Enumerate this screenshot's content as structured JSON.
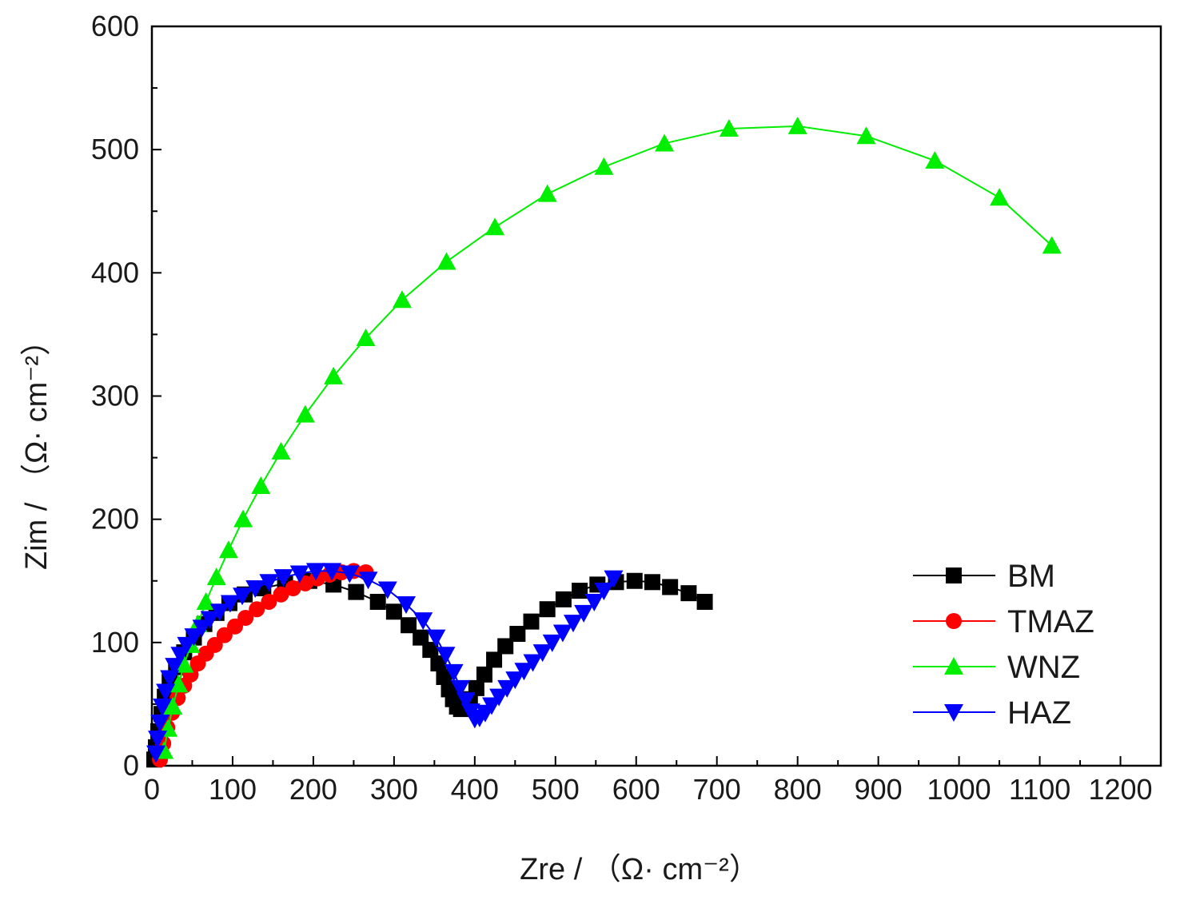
{
  "chart_data": {
    "type": "scatter",
    "title": "",
    "xlabel": "Zre / （Ω· cm⁻²）",
    "ylabel": "Zim / （Ω· cm⁻²）",
    "xlim": [
      0,
      1250
    ],
    "ylim": [
      0,
      600
    ],
    "xticks": [
      0,
      100,
      200,
      300,
      400,
      500,
      600,
      700,
      800,
      900,
      1000,
      1100,
      1200
    ],
    "yticks": [
      0,
      100,
      200,
      300,
      400,
      500,
      600
    ],
    "xtick_labels": [
      "0",
      "100",
      "200",
      "300",
      "400",
      "500",
      "600",
      "700",
      "800",
      "900",
      "1000",
      "1100",
      "1200"
    ],
    "ytick_labels": [
      "0",
      "100",
      "200",
      "300",
      "400",
      "500",
      "600"
    ],
    "grid": false,
    "legend_position": "right-lower",
    "series": [
      {
        "name": "BM",
        "color": "#000000",
        "marker": "square",
        "x": [
          3,
          5,
          8,
          12,
          16,
          22,
          30,
          40,
          52,
          65,
          80,
          96,
          115,
          138,
          165,
          195,
          225,
          253,
          280,
          300,
          318,
          333,
          345,
          355,
          362,
          368,
          373,
          378,
          383,
          388,
          394,
          402,
          412,
          424,
          438,
          453,
          470,
          490,
          510,
          530,
          552,
          575,
          598,
          620,
          642,
          665,
          685
        ],
        "y": [
          5,
          15,
          28,
          42,
          56,
          68,
          80,
          92,
          104,
          115,
          124,
          132,
          139,
          144,
          148,
          150,
          147,
          141,
          133,
          125,
          114,
          104,
          94,
          83,
          72,
          62,
          54,
          48,
          46,
          48,
          54,
          63,
          74,
          86,
          97,
          107,
          117,
          127,
          135,
          142,
          147,
          149,
          150,
          149,
          145,
          140,
          133
        ]
      },
      {
        "name": "TMAZ",
        "color": "#ff0000",
        "marker": "circle",
        "x": [
          10,
          14,
          19,
          25,
          32,
          40,
          48,
          57,
          67,
          78,
          90,
          103,
          116,
          130,
          145,
          160,
          175,
          190,
          205,
          220,
          235,
          250,
          265
        ],
        "y": [
          5,
          18,
          31,
          43,
          55,
          65,
          74,
          83,
          91,
          98,
          106,
          113,
          120,
          127,
          133,
          139,
          144,
          148,
          152,
          155,
          157,
          158,
          157
        ]
      },
      {
        "name": "WNZ",
        "color": "#00ee00",
        "marker": "triangle-up",
        "x": [
          15,
          20,
          26,
          33,
          40,
          48,
          57,
          67,
          80,
          95,
          113,
          135,
          160,
          190,
          225,
          265,
          310,
          365,
          425,
          490,
          560,
          635,
          715,
          800,
          885,
          970,
          1050,
          1115
        ],
        "y": [
          12,
          30,
          48,
          66,
          82,
          98,
          115,
          133,
          153,
          175,
          200,
          227,
          255,
          285,
          316,
          347,
          378,
          409,
          437,
          464,
          486,
          505,
          517,
          519,
          511,
          491,
          461,
          422
        ]
      },
      {
        "name": "HAZ",
        "color": "#0000ff",
        "marker": "triangle-down",
        "x": [
          5,
          7,
          10,
          13,
          17,
          22,
          28,
          35,
          43,
          52,
          62,
          72,
          84,
          97,
          112,
          128,
          145,
          163,
          183,
          203,
          223,
          245,
          268,
          292,
          315,
          336,
          352,
          364,
          374,
          382,
          389,
          395,
          400,
          406,
          413,
          421,
          430,
          440,
          450,
          461,
          472,
          484,
          496,
          509,
          522,
          535,
          548,
          560,
          572
        ],
        "y": [
          10,
          22,
          35,
          48,
          60,
          71,
          81,
          90,
          98,
          105,
          112,
          119,
          125,
          132,
          138,
          144,
          149,
          153,
          156,
          158,
          158,
          156,
          151,
          143,
          131,
          118,
          104,
          90,
          76,
          63,
          53,
          44,
          38,
          39,
          43,
          49,
          56,
          63,
          70,
          77,
          84,
          92,
          100,
          108,
          116,
          124,
          133,
          142,
          152
        ]
      }
    ]
  }
}
